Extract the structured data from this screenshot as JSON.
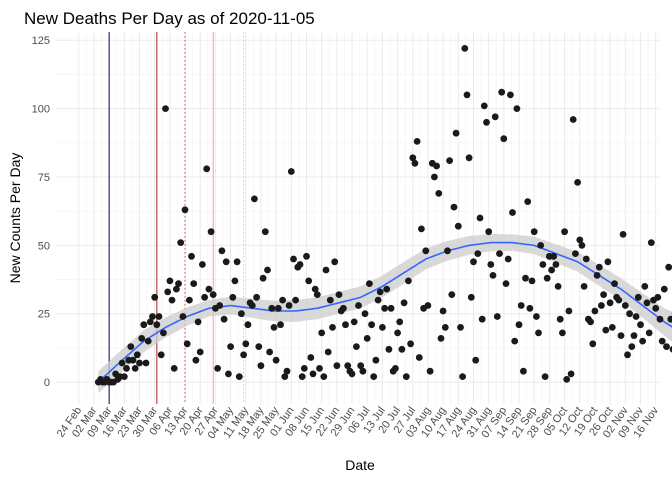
{
  "chart_data": {
    "type": "scatter",
    "title": "New Deaths Per Day as of 2020-11-05",
    "xlabel": "Date",
    "ylabel": "New Counts Per Day",
    "ylim": [
      -8,
      128
    ],
    "yticks": [
      0,
      25,
      50,
      75,
      100,
      125
    ],
    "xlim_days": [
      -10.5,
      268
    ],
    "x_start_label": "24 Feb",
    "x_tick_labels": [
      "24 Feb",
      "02 Mar",
      "09 Mar",
      "16 Mar",
      "23 Mar",
      "30 Mar",
      "06 Apr",
      "13 Apr",
      "20 Apr",
      "27 Apr",
      "04 May",
      "11 May",
      "18 May",
      "25 May",
      "01 Jun",
      "08 Jun",
      "15 Jun",
      "22 Jun",
      "29 Jun",
      "06 Jul",
      "13 Jul",
      "20 Jul",
      "27 Jul",
      "03 Aug",
      "10 Aug",
      "17 Aug",
      "24 Aug",
      "31 Aug",
      "07 Sep",
      "14 Sep",
      "21 Sep",
      "28 Sep",
      "05 Oct",
      "12 Oct",
      "19 Oct",
      "26 Oct",
      "02 Nov",
      "09 Nov",
      "16 Nov"
    ],
    "grid": true,
    "point_color": "#1a1a1a",
    "smooth_color": "#3366ff",
    "ribbon_color": "#cccccc",
    "vlines": [
      {
        "day": 14,
        "color": "#00007f",
        "style": "solid"
      },
      {
        "day": 36,
        "color": "#b22222",
        "style": "solid"
      },
      {
        "day": 49,
        "color": "#c0504d",
        "style": "dotted"
      },
      {
        "day": 62,
        "color": "#ff9999",
        "style": "solid"
      },
      {
        "day": 76,
        "color": "#ffb3b3",
        "style": "dotted"
      }
    ],
    "points": [
      [
        9,
        0
      ],
      [
        10,
        1
      ],
      [
        11,
        0
      ],
      [
        12,
        0
      ],
      [
        13,
        1
      ],
      [
        14,
        0
      ],
      [
        15,
        0
      ],
      [
        16,
        0
      ],
      [
        17,
        3
      ],
      [
        18,
        1
      ],
      [
        19,
        2
      ],
      [
        20,
        7
      ],
      [
        21,
        2
      ],
      [
        22,
        5
      ],
      [
        23,
        8
      ],
      [
        24,
        13
      ],
      [
        25,
        8
      ],
      [
        26,
        5
      ],
      [
        27,
        10
      ],
      [
        28,
        7
      ],
      [
        29,
        16
      ],
      [
        30,
        21
      ],
      [
        31,
        7
      ],
      [
        32,
        15
      ],
      [
        33,
        22
      ],
      [
        34,
        24
      ],
      [
        35,
        31
      ],
      [
        36,
        21
      ],
      [
        37,
        24
      ],
      [
        38,
        10
      ],
      [
        39,
        18
      ],
      [
        40,
        100
      ],
      [
        41,
        33
      ],
      [
        42,
        37
      ],
      [
        43,
        30
      ],
      [
        44,
        5
      ],
      [
        45,
        34
      ],
      [
        46,
        36
      ],
      [
        47,
        51
      ],
      [
        48,
        24
      ],
      [
        49,
        63
      ],
      [
        50,
        14
      ],
      [
        51,
        30
      ],
      [
        52,
        46
      ],
      [
        53,
        36
      ],
      [
        54,
        8
      ],
      [
        55,
        22
      ],
      [
        56,
        11
      ],
      [
        57,
        43
      ],
      [
        58,
        31
      ],
      [
        59,
        78
      ],
      [
        60,
        34
      ],
      [
        61,
        55
      ],
      [
        62,
        32
      ],
      [
        63,
        27
      ],
      [
        64,
        5
      ],
      [
        65,
        28
      ],
      [
        66,
        48
      ],
      [
        67,
        23
      ],
      [
        68,
        44
      ],
      [
        69,
        3
      ],
      [
        70,
        13
      ],
      [
        71,
        31
      ],
      [
        72,
        37
      ],
      [
        73,
        44
      ],
      [
        74,
        2
      ],
      [
        75,
        25
      ],
      [
        76,
        10
      ],
      [
        77,
        14
      ],
      [
        78,
        21
      ],
      [
        79,
        29
      ],
      [
        80,
        28
      ],
      [
        81,
        67
      ],
      [
        82,
        31
      ],
      [
        83,
        13
      ],
      [
        84,
        6
      ],
      [
        85,
        38
      ],
      [
        86,
        55
      ],
      [
        87,
        41
      ],
      [
        88,
        11
      ],
      [
        89,
        27
      ],
      [
        90,
        20
      ],
      [
        91,
        8
      ],
      [
        92,
        27
      ],
      [
        93,
        21
      ],
      [
        94,
        30
      ],
      [
        95,
        2
      ],
      [
        96,
        4
      ],
      [
        97,
        28
      ],
      [
        98,
        77
      ],
      [
        99,
        45
      ],
      [
        100,
        30
      ],
      [
        101,
        42
      ],
      [
        102,
        43
      ],
      [
        103,
        2
      ],
      [
        104,
        5
      ],
      [
        105,
        46
      ],
      [
        106,
        37
      ],
      [
        107,
        9
      ],
      [
        108,
        3
      ],
      [
        109,
        34
      ],
      [
        110,
        32
      ],
      [
        111,
        5
      ],
      [
        112,
        18
      ],
      [
        113,
        2
      ],
      [
        114,
        41
      ],
      [
        115,
        11
      ],
      [
        116,
        30
      ],
      [
        117,
        20
      ],
      [
        118,
        44
      ],
      [
        119,
        6
      ],
      [
        120,
        32
      ],
      [
        121,
        26
      ],
      [
        122,
        27
      ],
      [
        123,
        21
      ],
      [
        124,
        6
      ],
      [
        125,
        4
      ],
      [
        126,
        3
      ],
      [
        127,
        22
      ],
      [
        128,
        13
      ],
      [
        129,
        28
      ],
      [
        130,
        6
      ],
      [
        131,
        4
      ],
      [
        132,
        25
      ],
      [
        133,
        16
      ],
      [
        134,
        36
      ],
      [
        135,
        21
      ],
      [
        136,
        2
      ],
      [
        137,
        8
      ],
      [
        138,
        30
      ],
      [
        139,
        33
      ],
      [
        140,
        20
      ],
      [
        141,
        27
      ],
      [
        142,
        34
      ],
      [
        143,
        12
      ],
      [
        144,
        27
      ],
      [
        145,
        4
      ],
      [
        146,
        5
      ],
      [
        147,
        18
      ],
      [
        148,
        22
      ],
      [
        149,
        12
      ],
      [
        150,
        29
      ],
      [
        151,
        2
      ],
      [
        152,
        37
      ],
      [
        153,
        14
      ],
      [
        154,
        82
      ],
      [
        155,
        80
      ],
      [
        156,
        88
      ],
      [
        157,
        9
      ],
      [
        158,
        56
      ],
      [
        159,
        27
      ],
      [
        160,
        48
      ],
      [
        161,
        28
      ],
      [
        162,
        4
      ],
      [
        163,
        80
      ],
      [
        164,
        75
      ],
      [
        165,
        79
      ],
      [
        166,
        69
      ],
      [
        167,
        16
      ],
      [
        168,
        26
      ],
      [
        169,
        20
      ],
      [
        170,
        48
      ],
      [
        171,
        81
      ],
      [
        172,
        32
      ],
      [
        173,
        64
      ],
      [
        174,
        91
      ],
      [
        175,
        57
      ],
      [
        176,
        20
      ],
      [
        177,
        2
      ],
      [
        178,
        122
      ],
      [
        179,
        105
      ],
      [
        180,
        82
      ],
      [
        181,
        31
      ],
      [
        182,
        44
      ],
      [
        183,
        8
      ],
      [
        184,
        47
      ],
      [
        185,
        60
      ],
      [
        186,
        23
      ],
      [
        187,
        101
      ],
      [
        188,
        95
      ],
      [
        189,
        55
      ],
      [
        190,
        43
      ],
      [
        191,
        39
      ],
      [
        192,
        97
      ],
      [
        193,
        24
      ],
      [
        194,
        47
      ],
      [
        195,
        106
      ],
      [
        196,
        89
      ],
      [
        197,
        36
      ],
      [
        198,
        45
      ],
      [
        199,
        105
      ],
      [
        200,
        62
      ],
      [
        201,
        15
      ],
      [
        202,
        100
      ],
      [
        203,
        21
      ],
      [
        204,
        28
      ],
      [
        205,
        4
      ],
      [
        206,
        38
      ],
      [
        207,
        66
      ],
      [
        208,
        27
      ],
      [
        209,
        37
      ],
      [
        210,
        55
      ],
      [
        211,
        24
      ],
      [
        212,
        18
      ],
      [
        213,
        50
      ],
      [
        214,
        43
      ],
      [
        215,
        2
      ],
      [
        216,
        38
      ],
      [
        217,
        46
      ],
      [
        218,
        41
      ],
      [
        219,
        46
      ],
      [
        220,
        43
      ],
      [
        221,
        35
      ],
      [
        222,
        23
      ],
      [
        223,
        18
      ],
      [
        224,
        55
      ],
      [
        225,
        1
      ],
      [
        226,
        26
      ],
      [
        227,
        3
      ],
      [
        228,
        96
      ],
      [
        229,
        47
      ],
      [
        230,
        73
      ],
      [
        231,
        52
      ],
      [
        232,
        50
      ],
      [
        233,
        35
      ],
      [
        234,
        45
      ],
      [
        235,
        23
      ],
      [
        236,
        22
      ],
      [
        237,
        14
      ],
      [
        238,
        26
      ],
      [
        239,
        39
      ],
      [
        240,
        42
      ],
      [
        241,
        28
      ],
      [
        242,
        32
      ],
      [
        243,
        19
      ],
      [
        244,
        44
      ],
      [
        245,
        29
      ],
      [
        246,
        20
      ],
      [
        247,
        36
      ],
      [
        248,
        31
      ],
      [
        249,
        30
      ],
      [
        250,
        17
      ],
      [
        251,
        54
      ],
      [
        252,
        28
      ],
      [
        253,
        10
      ],
      [
        254,
        25
      ],
      [
        255,
        13
      ],
      [
        256,
        17
      ],
      [
        257,
        24
      ],
      [
        258,
        31
      ],
      [
        259,
        21
      ],
      [
        260,
        15
      ],
      [
        261,
        35
      ],
      [
        262,
        29
      ],
      [
        263,
        18
      ],
      [
        264,
        51
      ],
      [
        265,
        30
      ],
      [
        266,
        27
      ],
      [
        267,
        31
      ],
      [
        268,
        23
      ],
      [
        269,
        15
      ],
      [
        270,
        34
      ],
      [
        271,
        13
      ],
      [
        272,
        42
      ],
      [
        273,
        23
      ],
      [
        274,
        12
      ],
      [
        275,
        25
      ],
      [
        276,
        1
      ],
      [
        277,
        26
      ],
      [
        278,
        46
      ],
      [
        279,
        30
      ],
      [
        280,
        21
      ],
      [
        281,
        20
      ],
      [
        282,
        32
      ],
      [
        283,
        2
      ],
      [
        284,
        32
      ],
      [
        285,
        18
      ],
      [
        286,
        43
      ],
      [
        287,
        47
      ],
      [
        288,
        37
      ],
      [
        289,
        54
      ]
    ],
    "smooth_line": [
      [
        9,
        0
      ],
      [
        20,
        8
      ],
      [
        30,
        15
      ],
      [
        40,
        20
      ],
      [
        50,
        24
      ],
      [
        60,
        27
      ],
      [
        70,
        28
      ],
      [
        80,
        27
      ],
      [
        90,
        26
      ],
      [
        100,
        26
      ],
      [
        110,
        27
      ],
      [
        120,
        29
      ],
      [
        130,
        31
      ],
      [
        140,
        35
      ],
      [
        150,
        40
      ],
      [
        160,
        45
      ],
      [
        170,
        48
      ],
      [
        180,
        50
      ],
      [
        190,
        51
      ],
      [
        200,
        51
      ],
      [
        210,
        50
      ],
      [
        220,
        47
      ],
      [
        230,
        44
      ],
      [
        240,
        39
      ],
      [
        250,
        34
      ],
      [
        260,
        28
      ],
      [
        270,
        22
      ],
      [
        280,
        17
      ],
      [
        289,
        15
      ]
    ],
    "ribbon_half_width": [
      [
        9,
        4
      ],
      [
        30,
        4
      ],
      [
        60,
        3
      ],
      [
        100,
        4
      ],
      [
        150,
        4
      ],
      [
        200,
        3
      ],
      [
        250,
        4
      ],
      [
        270,
        5
      ],
      [
        289,
        8
      ]
    ]
  }
}
